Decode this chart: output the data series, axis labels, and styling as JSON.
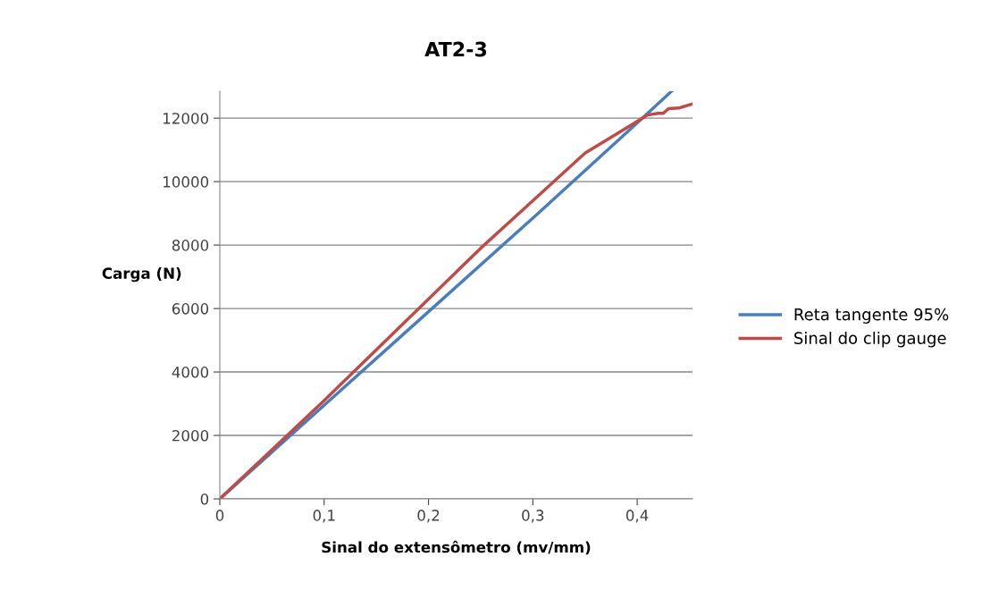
{
  "chart_data": {
    "type": "line",
    "title": "AT2-3",
    "xlabel": "Sinal do extensômetro (mv/mm)",
    "ylabel": "Carga (N)",
    "xlim": [
      0,
      0.453
    ],
    "ylim": [
      0,
      12850
    ],
    "xticks": [
      0,
      {
        "value": 0.1,
        "label": "0,1"
      },
      {
        "value": 0.2,
        "label": "0,2"
      },
      {
        "value": 0.3,
        "label": "0,3"
      },
      {
        "value": 0.4,
        "label": "0,4"
      }
    ],
    "yticks": [
      0,
      2000,
      4000,
      6000,
      8000,
      10000,
      12000
    ],
    "grid": "y",
    "legend": "right",
    "series": [
      {
        "name": "Reta tangente 95%",
        "color": "#4a7ebb",
        "x": [
          0,
          0.1,
          0.2,
          0.3,
          0.4,
          0.433
        ],
        "values": [
          0,
          2950,
          5900,
          8850,
          11850,
          12850
        ]
      },
      {
        "name": "Sinal do clip gauge",
        "color": "#be4b48",
        "x": [
          0,
          0.05,
          0.1,
          0.15,
          0.2,
          0.25,
          0.3,
          0.35,
          0.38,
          0.4,
          0.41,
          0.42,
          0.425,
          0.43,
          0.44,
          0.453
        ],
        "values": [
          0,
          1550,
          3100,
          4700,
          6300,
          7900,
          9400,
          10900,
          11500,
          11900,
          12100,
          12150,
          12150,
          12300,
          12320,
          12450
        ]
      }
    ]
  }
}
